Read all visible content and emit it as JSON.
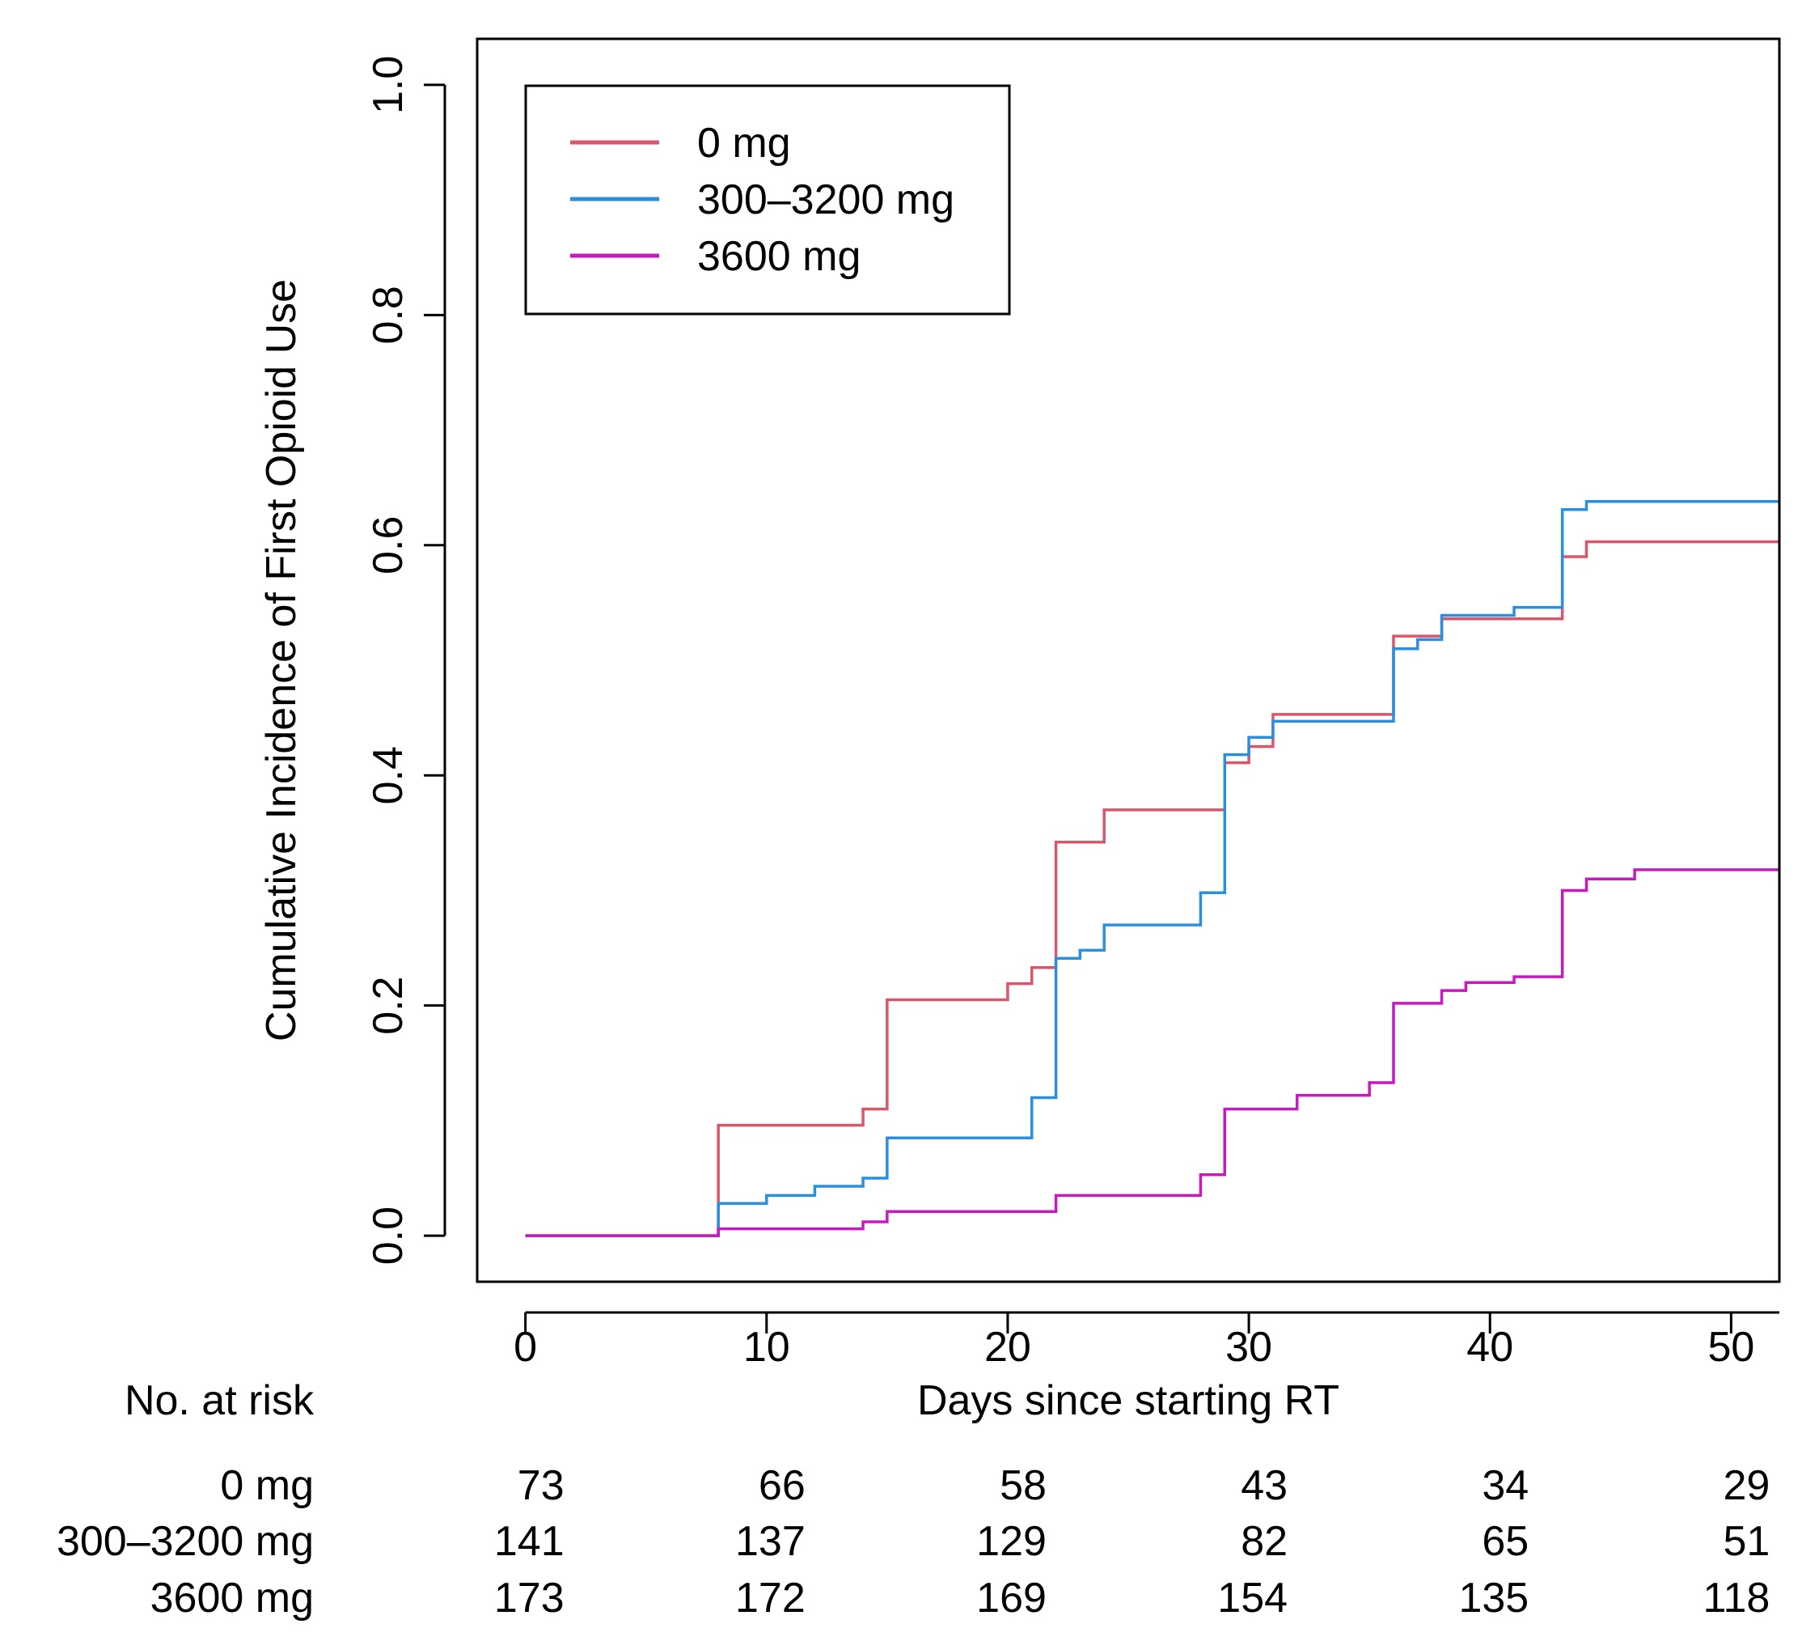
{
  "chart_data": {
    "type": "line",
    "subtype": "step cumulative incidence",
    "xlabel": "Days since starting RT",
    "ylabel": "Cumulative Incidence of First Opioid Use",
    "xlim": [
      -2,
      52
    ],
    "ylim": [
      -0.04,
      1.04
    ],
    "x_ticks": [
      0,
      10,
      20,
      30,
      40,
      50
    ],
    "x_tick_labels": [
      "0",
      "10",
      "20",
      "30",
      "40",
      "50"
    ],
    "y_ticks": [
      0,
      0.2,
      0.4,
      0.6,
      0.8,
      1.0
    ],
    "y_tick_labels": [
      "0.0",
      "0.2",
      "0.4",
      "0.6",
      "0.8",
      "1.0"
    ],
    "legend_position": "top-left",
    "series": [
      {
        "name": "0 mg",
        "color": "#d9566b",
        "x": [
          0,
          8,
          14,
          15,
          20,
          21,
          22,
          24,
          29,
          30,
          31,
          36,
          37,
          38,
          43,
          44,
          52
        ],
        "y": [
          0,
          0.096,
          0.11,
          0.205,
          0.219,
          0.233,
          0.342,
          0.37,
          0.411,
          0.425,
          0.453,
          0.521,
          0.521,
          0.536,
          0.59,
          0.603,
          0.603
        ]
      },
      {
        "name": "300–3200 mg",
        "color": "#2a8fde",
        "x": [
          0,
          8,
          10,
          12,
          14,
          15,
          21,
          22,
          23,
          24,
          28,
          29,
          30,
          31,
          36,
          37,
          38,
          41,
          43,
          44,
          52
        ],
        "y": [
          0,
          0.028,
          0.035,
          0.043,
          0.05,
          0.085,
          0.12,
          0.241,
          0.248,
          0.27,
          0.298,
          0.418,
          0.433,
          0.447,
          0.51,
          0.518,
          0.539,
          0.546,
          0.631,
          0.638,
          0.638
        ]
      },
      {
        "name": "3600 mg",
        "color": "#c818c0",
        "x": [
          0,
          8,
          14,
          15,
          22,
          28,
          29,
          32,
          35,
          36,
          38,
          39,
          41,
          43,
          44,
          46,
          52
        ],
        "y": [
          0,
          0.006,
          0.012,
          0.021,
          0.035,
          0.053,
          0.11,
          0.122,
          0.133,
          0.202,
          0.213,
          0.22,
          0.225,
          0.3,
          0.31,
          0.318,
          0.318
        ]
      }
    ],
    "risk_table": {
      "header": "No. at risk",
      "times": [
        0,
        10,
        20,
        30,
        40,
        50
      ],
      "rows": [
        {
          "label": "0 mg",
          "values": [
            "73",
            "66",
            "58",
            "43",
            "34",
            "29"
          ]
        },
        {
          "label": "300–3200 mg",
          "values": [
            "141",
            "137",
            "129",
            "82",
            "65",
            "51"
          ]
        },
        {
          "label": "3600 mg",
          "values": [
            "173",
            "172",
            "169",
            "154",
            "135",
            "118"
          ]
        }
      ]
    }
  }
}
